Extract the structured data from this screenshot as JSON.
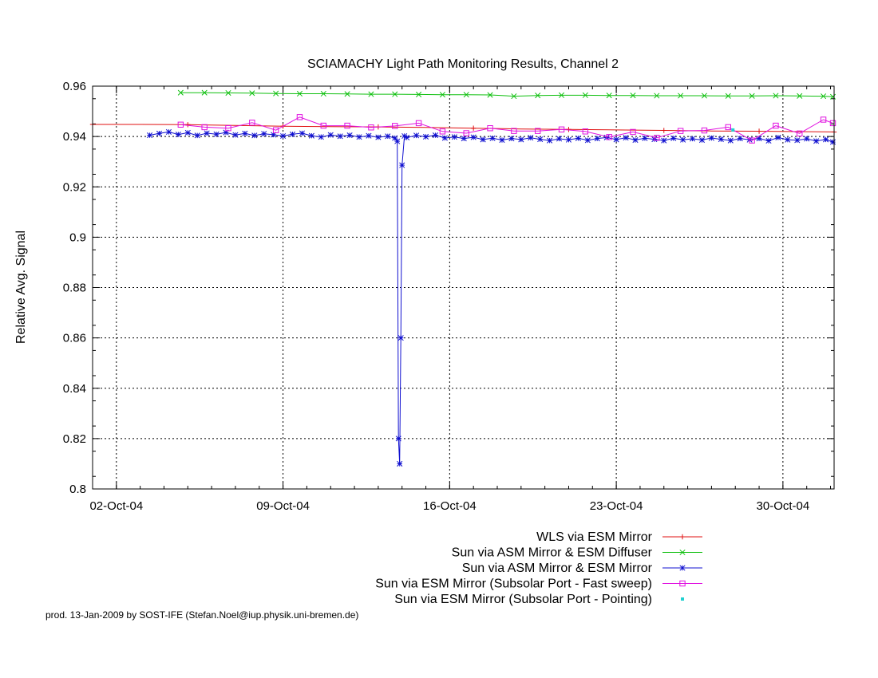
{
  "chart_data": {
    "type": "line",
    "title": "SCIAMACHY Light Path Monitoring Results, Channel 2",
    "xlabel": "",
    "ylabel": "Relative Avg. Signal",
    "x_ticks": [
      "02-Oct-04",
      "09-Oct-04",
      "16-Oct-04",
      "23-Oct-04",
      "30-Oct-04"
    ],
    "y_ticks": [
      "0.8",
      "0.82",
      "0.84",
      "0.86",
      "0.88",
      "0.9",
      "0.92",
      "0.94",
      "0.96"
    ],
    "xlim_day_of_oct_2004": [
      1,
      32.15
    ],
    "ylim": [
      0.8,
      0.96
    ],
    "grid": true,
    "legend_position": "below",
    "series": [
      {
        "name": "WLS via ESM Mirror",
        "color": "#e01010",
        "marker": "plus",
        "x": [
          1.0,
          3.0,
          5.0,
          7.0,
          9.0,
          11.0,
          13.0,
          15.0,
          17.0,
          19.0,
          21.0,
          23.0,
          25.0,
          27.0,
          29.0,
          31.0,
          32.15
        ],
        "y": [
          0.9448,
          0.9448,
          0.9447,
          0.9444,
          0.9441,
          0.9439,
          0.9438,
          0.9436,
          0.9433,
          0.943,
          0.9428,
          0.9426,
          0.9424,
          0.9422,
          0.9421,
          0.9419,
          0.9418
        ]
      },
      {
        "name": "Sun via ASM Mirror & ESM Diffuser",
        "color": "#10c010",
        "marker": "x",
        "x": [
          4.7,
          5.7,
          6.7,
          7.7,
          8.7,
          9.7,
          10.7,
          11.7,
          12.7,
          13.7,
          14.7,
          15.7,
          16.7,
          17.7,
          18.7,
          19.7,
          20.7,
          21.7,
          22.7,
          23.7,
          24.7,
          25.7,
          26.7,
          27.7,
          28.7,
          29.7,
          30.7,
          31.7,
          32.1
        ],
        "y": [
          0.9574,
          0.9574,
          0.9573,
          0.9572,
          0.9571,
          0.957,
          0.957,
          0.9569,
          0.9568,
          0.9568,
          0.9567,
          0.9566,
          0.9566,
          0.9565,
          0.956,
          0.9563,
          0.9564,
          0.9564,
          0.9563,
          0.9563,
          0.9562,
          0.9562,
          0.9562,
          0.9561,
          0.9561,
          0.9562,
          0.9561,
          0.956,
          0.9558
        ]
      },
      {
        "name": "Sun via ASM Mirror & ESM Mirror",
        "color": "#1010d0",
        "marker": "star",
        "x": [
          3.4,
          3.8,
          4.2,
          4.6,
          5.0,
          5.4,
          5.8,
          6.2,
          6.6,
          7.0,
          7.4,
          7.8,
          8.2,
          8.6,
          9.0,
          9.4,
          9.8,
          10.2,
          10.6,
          11.0,
          11.4,
          11.8,
          12.2,
          12.6,
          13.0,
          13.4,
          13.7,
          13.8,
          13.85,
          13.9,
          13.95,
          14.0,
          14.1,
          14.2,
          14.6,
          15.0,
          15.4,
          15.8,
          16.2,
          16.6,
          17.0,
          17.4,
          17.8,
          18.2,
          18.6,
          19.0,
          19.4,
          19.8,
          20.2,
          20.6,
          21.0,
          21.4,
          21.8,
          22.2,
          22.6,
          23.0,
          23.4,
          23.8,
          24.2,
          24.6,
          25.0,
          25.4,
          25.8,
          26.2,
          26.6,
          27.0,
          27.4,
          27.8,
          28.2,
          28.6,
          29.0,
          29.4,
          29.8,
          30.2,
          30.6,
          31.0,
          31.4,
          31.8,
          32.1
        ],
        "y": [
          0.9405,
          0.9412,
          0.9418,
          0.9408,
          0.9415,
          0.9404,
          0.9413,
          0.9409,
          0.9416,
          0.9406,
          0.9412,
          0.9404,
          0.9411,
          0.9407,
          0.9402,
          0.9409,
          0.9413,
          0.9403,
          0.9398,
          0.9406,
          0.9401,
          0.9405,
          0.9398,
          0.9403,
          0.9397,
          0.9401,
          0.9394,
          0.9381,
          0.82,
          0.81,
          0.86,
          0.9286,
          0.9402,
          0.9396,
          0.9404,
          0.9399,
          0.9405,
          0.9394,
          0.9398,
          0.9392,
          0.9397,
          0.9388,
          0.9393,
          0.9386,
          0.9392,
          0.9388,
          0.9395,
          0.9389,
          0.9384,
          0.9391,
          0.9387,
          0.9393,
          0.9385,
          0.9392,
          0.9396,
          0.9388,
          0.9395,
          0.9386,
          0.9393,
          0.9389,
          0.9384,
          0.9393,
          0.9387,
          0.9391,
          0.9386,
          0.9394,
          0.9389,
          0.9384,
          0.9392,
          0.9387,
          0.9392,
          0.9383,
          0.9396,
          0.9387,
          0.9385,
          0.9391,
          0.9382,
          0.9388,
          0.9378
        ]
      },
      {
        "name": "Sun via ESM Mirror (Subsolar Port - Fast sweep)",
        "color": "#e010e0",
        "marker": "square",
        "x": [
          4.7,
          5.7,
          6.7,
          7.7,
          8.7,
          9.7,
          10.7,
          11.7,
          12.7,
          13.7,
          14.7,
          15.7,
          16.7,
          17.7,
          18.7,
          19.7,
          20.7,
          21.7,
          22.7,
          23.7,
          24.7,
          25.7,
          26.7,
          27.7,
          28.7,
          29.7,
          30.7,
          31.7,
          32.1
        ],
        "y": [
          0.9447,
          0.9437,
          0.9433,
          0.9455,
          0.9425,
          0.9477,
          0.9443,
          0.9443,
          0.9436,
          0.9442,
          0.9453,
          0.942,
          0.9413,
          0.9433,
          0.9422,
          0.9422,
          0.9428,
          0.942,
          0.9398,
          0.9418,
          0.9395,
          0.9422,
          0.9424,
          0.9437,
          0.9384,
          0.9443,
          0.9412,
          0.9467,
          0.9453
        ]
      },
      {
        "name": "Sun via ESM Mirror (Subsolar Port - Pointing)",
        "color": "#20d0d0",
        "marker": "point",
        "x": [
          27.9
        ],
        "y": [
          0.9426
        ]
      }
    ],
    "footer": "prod. 13-Jan-2009 by SOST-IFE (Stefan.Noel@iup.physik.uni-bremen.de)"
  }
}
